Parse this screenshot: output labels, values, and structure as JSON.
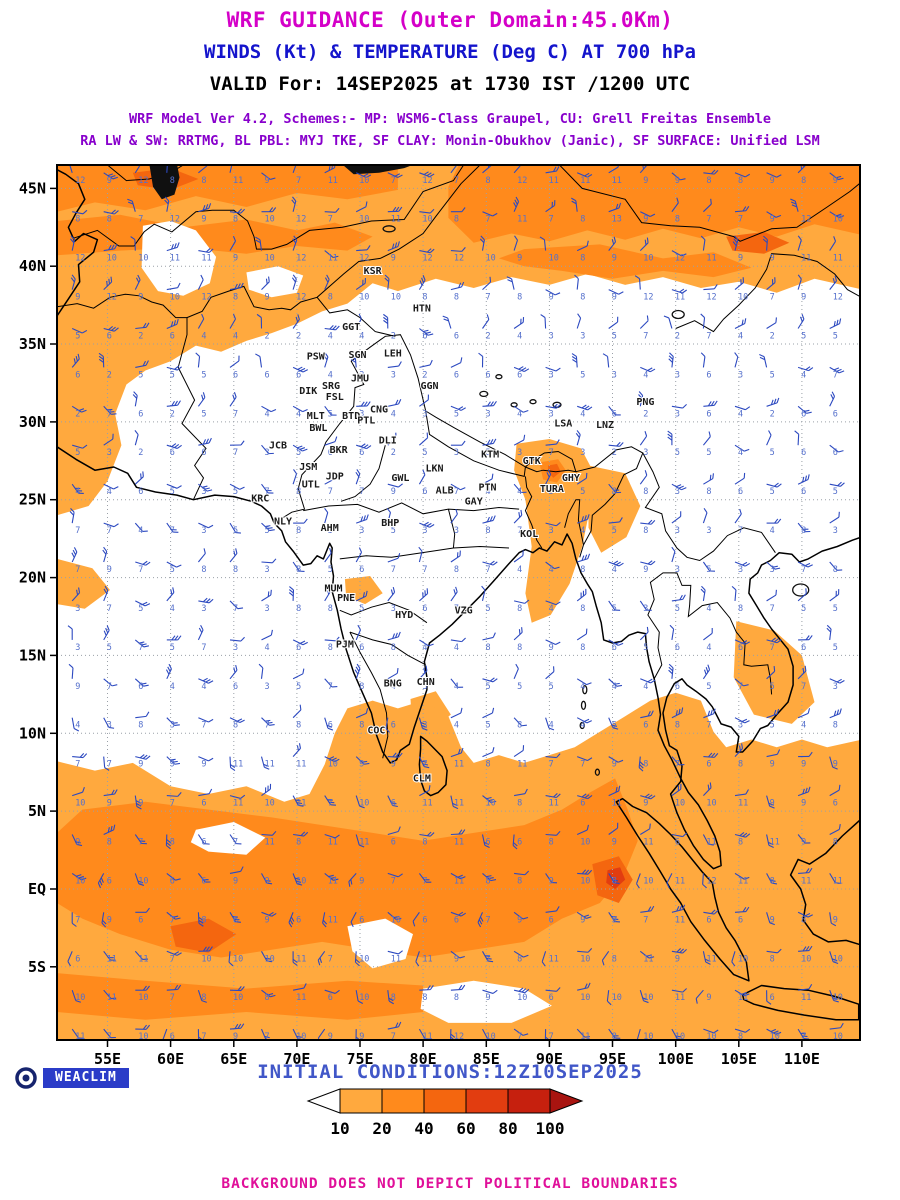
{
  "header": {
    "title": "WRF GUIDANCE (Outer Domain:45.0Km)",
    "subtitle": "WINDS (Kt) & TEMPERATURE (Deg C) AT 700 hPa",
    "valid_line": "VALID For: 14SEP2025 at 1730 IST /1200 UTC",
    "model_line1": "WRF Model Ver 4.2, Schemes:- MP: WSM6-Class Graupel, CU: Grell Freitas Ensemble",
    "model_line2": "RA LW & SW: RRTMG, BL PBL: MYJ TKE, SF CLAY: Monin-Obukhov (Janic), SF SURFACE: Unified LSM"
  },
  "footer": {
    "logo_text": "WEACLIM",
    "initial_conditions": "INITIAL CONDITIONS:12Z10SEP2025",
    "disclaimer": "BACKGROUND DOES NOT DEPICT POLITICAL BOUNDARIES"
  },
  "colors": {
    "title": "#d400c8",
    "subtitle": "#1414cc",
    "valid": "#000000",
    "model": "#8800cc",
    "initial": "#4157c8",
    "disclaimer": "#e0109a",
    "logo_box": "#2b3cc8",
    "logo_ring": "#16246e",
    "coast": "#000000",
    "grid": "#9aa0a8",
    "barb": "#2c49c0",
    "barb_number": "#5570cc",
    "station": "#1a1a1a"
  },
  "chart_data": {
    "type": "heatmap",
    "title": "WRF GUIDANCE (Outer Domain:45.0Km)",
    "subtitle": "WINDS (Kt) & TEMPERATURE (Deg C) AT 700 hPa",
    "valid": "14SEP2025 at 1730 IST /1200 UTC",
    "initial_conditions": "12Z10SEP2025",
    "level_hpa": 700,
    "shading_units": "wind speed shading (Kt)",
    "domain": {
      "lon_min": 51.0,
      "lon_max": 114.6,
      "lat_min": -9.7,
      "lat_max": 46.5
    },
    "x_axis": {
      "ticks": [
        {
          "label": "55E",
          "value": 55
        },
        {
          "label": "60E",
          "value": 60
        },
        {
          "label": "65E",
          "value": 65
        },
        {
          "label": "70E",
          "value": 70
        },
        {
          "label": "75E",
          "value": 75
        },
        {
          "label": "80E",
          "value": 80
        },
        {
          "label": "85E",
          "value": 85
        },
        {
          "label": "90E",
          "value": 90
        },
        {
          "label": "95E",
          "value": 95
        },
        {
          "label": "100E",
          "value": 100
        },
        {
          "label": "105E",
          "value": 105
        },
        {
          "label": "110E",
          "value": 110
        }
      ]
    },
    "y_axis": {
      "ticks": [
        {
          "label": "45N",
          "value": 45
        },
        {
          "label": "40N",
          "value": 40
        },
        {
          "label": "35N",
          "value": 35
        },
        {
          "label": "30N",
          "value": 30
        },
        {
          "label": "25N",
          "value": 25
        },
        {
          "label": "20N",
          "value": 20
        },
        {
          "label": "15N",
          "value": 15
        },
        {
          "label": "10N",
          "value": 10
        },
        {
          "label": "5N",
          "value": 5
        },
        {
          "label": "EQ",
          "value": 0
        },
        {
          "label": "5S",
          "value": -5
        }
      ]
    },
    "legend": {
      "values": [
        10,
        20,
        40,
        60,
        80,
        100
      ],
      "colors": [
        "#FFA93E",
        "#FF8A1C",
        "#F4660F",
        "#E23D10",
        "#C6200E"
      ],
      "arrow_color": "#A81410",
      "below_min_color": "#FFFFFF"
    },
    "barb_field": {
      "units_wind": "Kt",
      "units_number": "Deg C",
      "number_range": [
        1,
        16
      ],
      "grid_spacing_deg": 2.5
    },
    "stations": [
      {
        "code": "KSR",
        "lon": 76.0,
        "lat": 39.5
      },
      {
        "code": "HTN",
        "lon": 79.9,
        "lat": 37.1
      },
      {
        "code": "GGT",
        "lon": 74.3,
        "lat": 35.9
      },
      {
        "code": "PSW",
        "lon": 71.5,
        "lat": 34.0
      },
      {
        "code": "SGN",
        "lon": 74.8,
        "lat": 34.1
      },
      {
        "code": "LEH",
        "lon": 77.6,
        "lat": 34.2
      },
      {
        "code": "DIK",
        "lon": 70.9,
        "lat": 31.8
      },
      {
        "code": "SRG",
        "lon": 72.7,
        "lat": 32.1
      },
      {
        "code": "JMU",
        "lon": 75.0,
        "lat": 32.6
      },
      {
        "code": "GGN",
        "lon": 80.5,
        "lat": 32.1
      },
      {
        "code": "FSL",
        "lon": 73.0,
        "lat": 31.4
      },
      {
        "code": "MLT",
        "lon": 71.5,
        "lat": 30.2
      },
      {
        "code": "BTD",
        "lon": 74.3,
        "lat": 30.2
      },
      {
        "code": "CNG",
        "lon": 76.5,
        "lat": 30.6
      },
      {
        "code": "BWL",
        "lon": 71.7,
        "lat": 29.4
      },
      {
        "code": "PTL",
        "lon": 75.5,
        "lat": 29.9
      },
      {
        "code": "DLI",
        "lon": 77.2,
        "lat": 28.6
      },
      {
        "code": "JCB",
        "lon": 68.5,
        "lat": 28.3
      },
      {
        "code": "BKR",
        "lon": 73.3,
        "lat": 28.0
      },
      {
        "code": "JSM",
        "lon": 70.9,
        "lat": 26.9
      },
      {
        "code": "JDP",
        "lon": 73.0,
        "lat": 26.3
      },
      {
        "code": "UTL",
        "lon": 71.1,
        "lat": 25.8
      },
      {
        "code": "KRC",
        "lon": 67.1,
        "lat": 24.9
      },
      {
        "code": "NLY",
        "lon": 68.9,
        "lat": 23.4
      },
      {
        "code": "AHM",
        "lon": 72.6,
        "lat": 23.0
      },
      {
        "code": "GWL",
        "lon": 78.2,
        "lat": 26.2
      },
      {
        "code": "LKN",
        "lon": 80.9,
        "lat": 26.8
      },
      {
        "code": "ALB",
        "lon": 81.7,
        "lat": 25.4
      },
      {
        "code": "GAY",
        "lon": 84.0,
        "lat": 24.7
      },
      {
        "code": "PTN",
        "lon": 85.1,
        "lat": 25.6
      },
      {
        "code": "KTM",
        "lon": 85.3,
        "lat": 27.7
      },
      {
        "code": "GTK",
        "lon": 88.6,
        "lat": 27.3
      },
      {
        "code": "LSA",
        "lon": 91.1,
        "lat": 29.7
      },
      {
        "code": "LNZ",
        "lon": 94.4,
        "lat": 29.6
      },
      {
        "code": "PNG",
        "lon": 97.6,
        "lat": 31.1
      },
      {
        "code": "TURA",
        "lon": 90.2,
        "lat": 25.5
      },
      {
        "code": "GHY",
        "lon": 91.7,
        "lat": 26.2
      },
      {
        "code": "BHP",
        "lon": 77.4,
        "lat": 23.3
      },
      {
        "code": "KOL",
        "lon": 88.4,
        "lat": 22.6
      },
      {
        "code": "MUM",
        "lon": 72.9,
        "lat": 19.1
      },
      {
        "code": "PNE",
        "lon": 73.9,
        "lat": 18.5
      },
      {
        "code": "HYD",
        "lon": 78.5,
        "lat": 17.4
      },
      {
        "code": "VZG",
        "lon": 83.2,
        "lat": 17.7
      },
      {
        "code": "PJM",
        "lon": 73.8,
        "lat": 15.5
      },
      {
        "code": "BNG",
        "lon": 77.6,
        "lat": 13.0
      },
      {
        "code": "CHN",
        "lon": 80.2,
        "lat": 13.1
      },
      {
        "code": "COC",
        "lon": 76.3,
        "lat": 10.0
      },
      {
        "code": "CLM",
        "lon": 79.9,
        "lat": 6.9
      }
    ]
  }
}
